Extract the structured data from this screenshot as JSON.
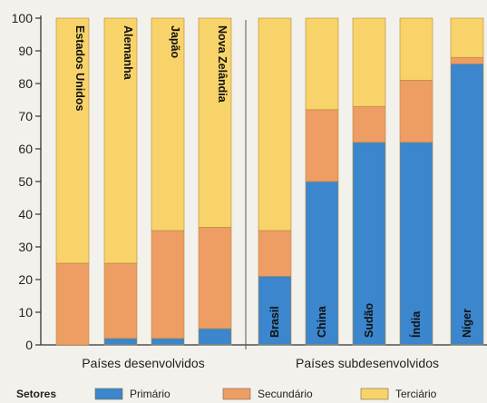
{
  "chart_data": {
    "type": "bar",
    "stacked": true,
    "ylim": [
      0,
      100
    ],
    "yticks": [
      0,
      10,
      20,
      30,
      40,
      50,
      60,
      70,
      80,
      90,
      100
    ],
    "grid": false,
    "categories": [
      "Estados Unidos",
      "Alemanha",
      "Japão",
      "Nova Zelândia",
      "Brasil",
      "China",
      "Sudão",
      "Índia",
      "Níger"
    ],
    "groups": [
      {
        "label": "Países desenvolvidos",
        "categories": [
          "Estados Unidos",
          "Alemanha",
          "Japão",
          "Nova Zelândia"
        ]
      },
      {
        "label": "Países subdesenvolvidos",
        "categories": [
          "Brasil",
          "China",
          "Sudão",
          "Índia",
          "Níger"
        ]
      }
    ],
    "series": [
      {
        "name": "Primário",
        "color": "#3b86cc",
        "values": [
          0,
          2,
          2,
          5,
          21,
          50,
          62,
          62,
          86
        ]
      },
      {
        "name": "Secundário",
        "color": "#ee9d64",
        "values": [
          25,
          23,
          33,
          31,
          14,
          22,
          11,
          19,
          2
        ]
      },
      {
        "name": "Terciário",
        "color": "#f8d36a",
        "values": [
          75,
          75,
          65,
          64,
          65,
          28,
          27,
          19,
          12
        ]
      }
    ],
    "legend": {
      "title": "Setores",
      "position": "bottom"
    }
  }
}
